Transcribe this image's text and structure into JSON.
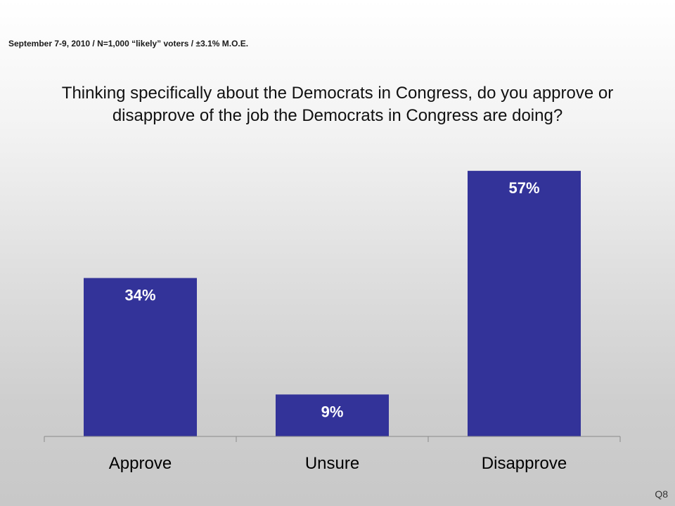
{
  "header": {
    "subtitle": "September 7-9, 2010 / N=1,000 “likely” voters / ±3.1% M.O.E."
  },
  "question": {
    "line1": "Thinking specifically about the Democrats in Congress, do you approve or",
    "line2": "disapprove of the job the Democrats in Congress are doing?"
  },
  "chart_data": {
    "type": "bar",
    "categories": [
      "Approve",
      "Unsure",
      "Disapprove"
    ],
    "values": [
      34,
      9,
      57
    ],
    "value_labels": [
      "34%",
      "9%",
      "57%"
    ],
    "ylim": [
      0,
      100
    ],
    "grid": false,
    "bar_color": "#333399",
    "label_color": "#ffffff"
  },
  "footer": {
    "code": "Q8"
  }
}
